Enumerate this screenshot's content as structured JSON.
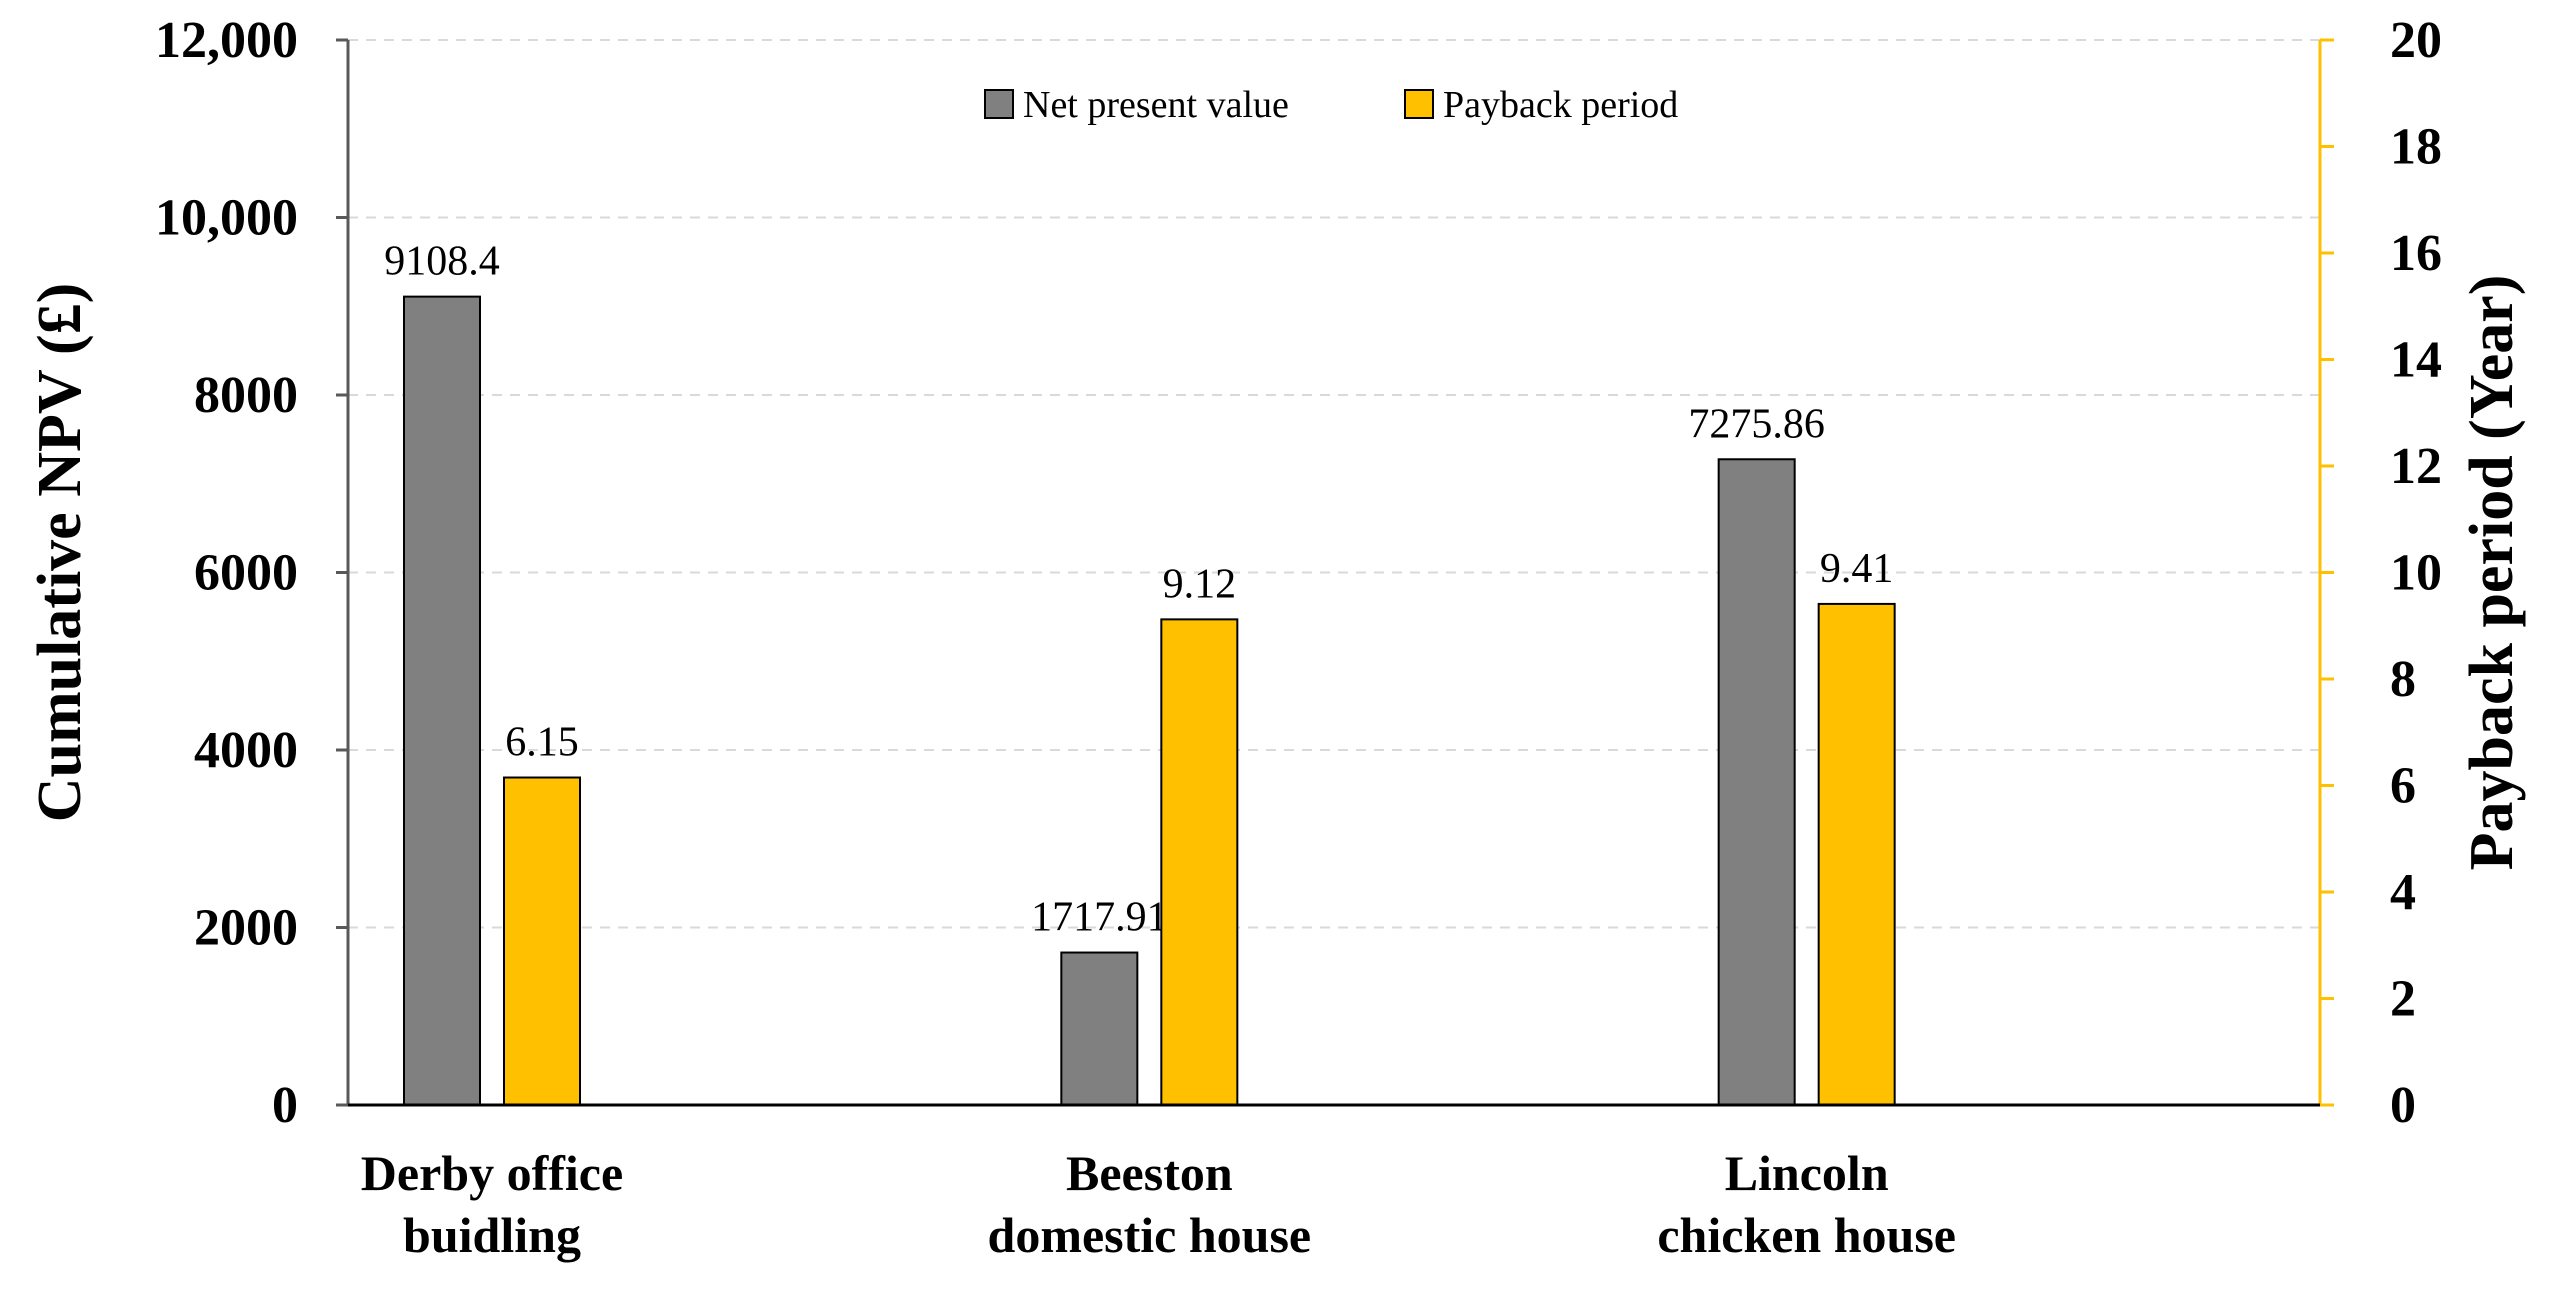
{
  "chart_data": {
    "type": "bar",
    "categories": [
      [
        "Derby office",
        "buidling"
      ],
      [
        "Beeston",
        "domestic house"
      ],
      [
        "Lincoln",
        "chicken house"
      ]
    ],
    "series": [
      {
        "name": "Net present value",
        "axis": "left",
        "color": "#808080",
        "values": [
          9108.4,
          1717.91,
          7275.86
        ],
        "labels": [
          "9108.4",
          "1717.91",
          "7275.86"
        ]
      },
      {
        "name": "Payback period",
        "axis": "right",
        "color": "#FFC000",
        "values": [
          6.15,
          9.12,
          9.41
        ],
        "labels": [
          "6.15",
          "9.12",
          "9.41"
        ]
      }
    ],
    "ylabel": "Cumulative NPV (£)",
    "y2label": "Payback period (Year)",
    "ylim": [
      0,
      12000
    ],
    "y2lim": [
      0,
      20
    ],
    "yticks": [
      "0",
      "2000",
      "4000",
      "6000",
      "8000",
      "10,000",
      "12,000"
    ],
    "y2ticks": [
      "0",
      "2",
      "4",
      "6",
      "8",
      "10",
      "12",
      "14",
      "16",
      "18",
      "20"
    ],
    "legend_position": "top-center",
    "grid": true,
    "right_axis_color": "#FFC000"
  }
}
